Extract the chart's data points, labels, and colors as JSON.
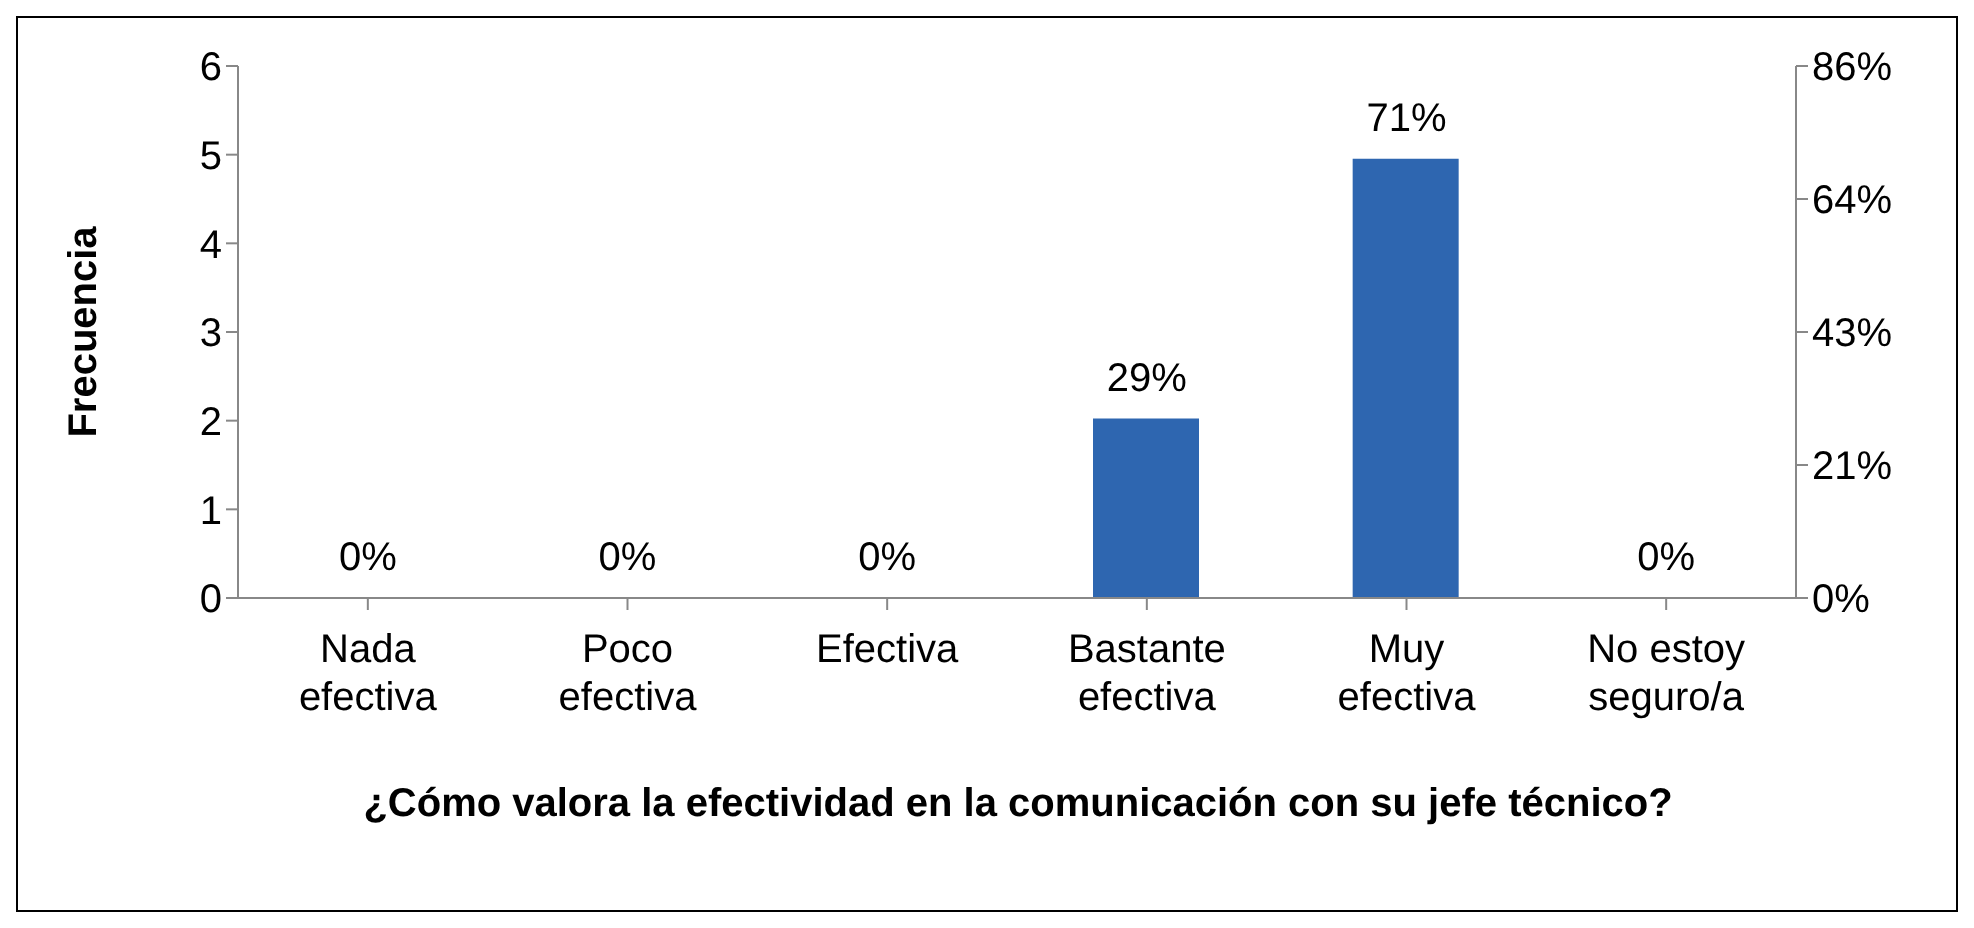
{
  "chart_data": {
    "type": "bar",
    "xlabel": "¿Cómo valora la efectividad en la comunicación con su jefe técnico?",
    "ylabel": "Frecuencia",
    "categories": [
      "Nada efectiva",
      "Poco efectiva",
      "Efectiva",
      "Bastante efectiva",
      "Muy efectiva",
      "No estoy seguro/a"
    ],
    "series": [
      {
        "color": "#2e66b0",
        "axis": "y2",
        "values": [
          0,
          0,
          0,
          29,
          71,
          0
        ],
        "value_labels": [
          "0%",
          "0%",
          "0%",
          "29%",
          "71%",
          "0%"
        ]
      }
    ],
    "ylim": [
      0,
      6
    ],
    "yticks": [
      0,
      1,
      2,
      3,
      4,
      5,
      6
    ],
    "y2lim": [
      0,
      86
    ],
    "y2ticks": [
      {
        "value": 0,
        "label": "0%"
      },
      {
        "value": 21.5,
        "label": "21%"
      },
      {
        "value": 43,
        "label": "43%"
      },
      {
        "value": 64.5,
        "label": "64%"
      },
      {
        "value": 86,
        "label": "86%"
      }
    ],
    "grid": false,
    "legend": false
  }
}
